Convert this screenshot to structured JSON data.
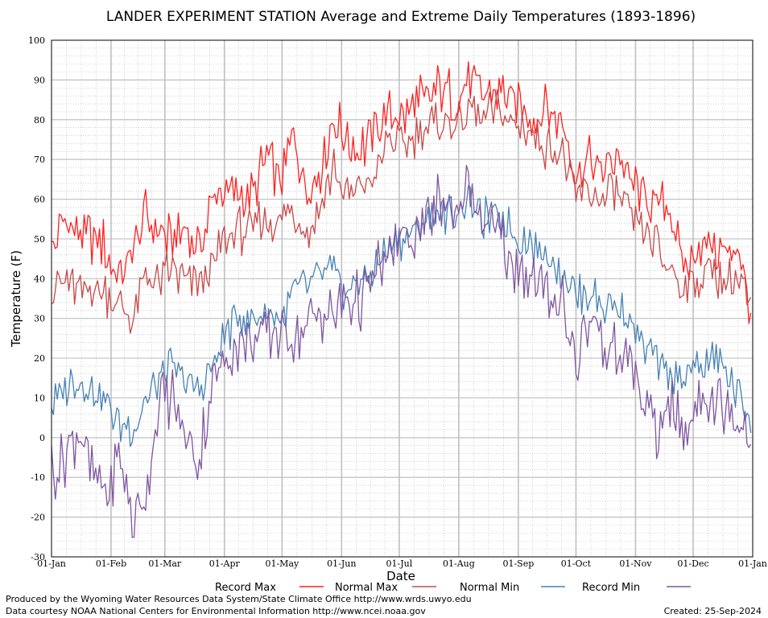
{
  "chart_data": {
    "type": "line",
    "title": "LANDER EXPERIMENT STATION Average and Extreme Daily Temperatures (1893-1896)",
    "xlabel": "Date",
    "ylabel": "Temperature (F)",
    "ylim": [
      -30,
      100
    ],
    "y_ticks": [
      "100",
      "90",
      "80",
      "70",
      "60",
      "50",
      "40",
      "30",
      "20",
      "10",
      "0",
      "-10",
      "-20",
      "-30"
    ],
    "x_ticks": [
      "01-Jan",
      "01-Feb",
      "01-Mar",
      "01-Apr",
      "01-May",
      "01-Jun",
      "01-Jul",
      "01-Aug",
      "01-Sep",
      "01-Oct",
      "01-Nov",
      "01-Dec",
      "01-Jan"
    ],
    "grid": true,
    "legend_position": "bottom",
    "colors": {
      "record_max": "#ff2020",
      "normal_max": "#c84848",
      "normal_min": "#4682b4",
      "record_min": "#7f56a0"
    },
    "series": [
      {
        "name": "Record Max",
        "key": "record_max",
        "days": [
          1,
          8,
          15,
          22,
          29,
          36,
          43,
          50,
          57,
          64,
          71,
          78,
          85,
          92,
          99,
          106,
          113,
          120,
          127,
          134,
          141,
          148,
          155,
          162,
          169,
          176,
          183,
          190,
          197,
          204,
          211,
          218,
          225,
          232,
          239,
          246,
          253,
          260,
          267,
          274,
          281,
          288,
          295,
          302,
          309,
          316,
          323,
          330,
          337,
          344,
          351,
          358,
          365
        ],
        "values": [
          46,
          55,
          52,
          50,
          48,
          40,
          47,
          56,
          52,
          49,
          52,
          48,
          60,
          62,
          60,
          62,
          70,
          65,
          75,
          63,
          68,
          80,
          75,
          72,
          78,
          82,
          80,
          84,
          85,
          88,
          85,
          92,
          86,
          88,
          86,
          83,
          80,
          83,
          78,
          66,
          70,
          66,
          72,
          65,
          60,
          58,
          58,
          42,
          48,
          50,
          45,
          50,
          32
        ]
      },
      {
        "name": "Normal Max",
        "key": "normal_max",
        "days": [
          1,
          8,
          15,
          22,
          29,
          36,
          43,
          50,
          57,
          64,
          71,
          78,
          85,
          92,
          99,
          106,
          113,
          120,
          127,
          134,
          141,
          148,
          155,
          162,
          169,
          176,
          183,
          190,
          197,
          204,
          211,
          218,
          225,
          232,
          239,
          246,
          253,
          260,
          267,
          274,
          281,
          288,
          295,
          302,
          309,
          316,
          323,
          330,
          337,
          344,
          351,
          358,
          365
        ],
        "values": [
          36,
          40,
          37,
          38,
          36,
          33,
          30,
          40,
          40,
          42,
          38,
          40,
          43,
          50,
          52,
          53,
          55,
          53,
          58,
          52,
          58,
          68,
          60,
          63,
          65,
          75,
          73,
          76,
          78,
          80,
          78,
          83,
          80,
          82,
          80,
          78,
          75,
          73,
          72,
          60,
          62,
          60,
          62,
          55,
          52,
          48,
          43,
          38,
          40,
          42,
          38,
          40,
          32
        ]
      },
      {
        "name": "Normal Min",
        "key": "normal_min",
        "days": [
          1,
          8,
          15,
          22,
          29,
          36,
          43,
          50,
          57,
          64,
          71,
          78,
          85,
          92,
          99,
          106,
          113,
          120,
          127,
          134,
          141,
          148,
          155,
          162,
          169,
          176,
          183,
          190,
          197,
          204,
          211,
          218,
          225,
          232,
          239,
          246,
          253,
          260,
          267,
          274,
          281,
          288,
          295,
          302,
          309,
          316,
          323,
          330,
          337,
          344,
          351,
          358,
          365
        ],
        "values": [
          8,
          13,
          14,
          12,
          10,
          4,
          2,
          10,
          14,
          18,
          14,
          12,
          18,
          26,
          30,
          30,
          32,
          30,
          36,
          38,
          40,
          42,
          36,
          40,
          42,
          48,
          50,
          52,
          55,
          57,
          56,
          60,
          55,
          56,
          53,
          50,
          48,
          46,
          42,
          36,
          36,
          33,
          32,
          30,
          24,
          20,
          14,
          16,
          18,
          20,
          18,
          10,
          6
        ]
      },
      {
        "name": "Record Min",
        "key": "record_min",
        "days": [
          1,
          8,
          15,
          22,
          29,
          36,
          43,
          50,
          57,
          64,
          71,
          78,
          85,
          92,
          99,
          106,
          113,
          120,
          127,
          134,
          141,
          148,
          155,
          162,
          169,
          176,
          183,
          190,
          197,
          204,
          211,
          218,
          225,
          232,
          239,
          246,
          253,
          260,
          267,
          274,
          281,
          288,
          295,
          302,
          309,
          316,
          323,
          330,
          337,
          344,
          351,
          358,
          365
        ],
        "values": [
          -8,
          -5,
          2,
          -10,
          -15,
          -5,
          -20,
          -15,
          8,
          10,
          0,
          -5,
          14,
          20,
          23,
          25,
          26,
          27,
          25,
          30,
          30,
          32,
          35,
          33,
          40,
          46,
          50,
          52,
          55,
          60,
          58,
          64,
          55,
          52,
          45,
          43,
          40,
          35,
          35,
          18,
          30,
          25,
          20,
          20,
          10,
          -2,
          10,
          0,
          10,
          10,
          8,
          5,
          2
        ]
      }
    ]
  },
  "footer": {
    "credit_line1": "Produced by the Wyoming Water Resources Data System/State Climate Office http://www.wrds.uwyo.edu",
    "credit_line2": "Data courtesy NOAA National Centers for Environmental Information http://www.ncei.noaa.gov",
    "created": "Created:  25-Sep-2024"
  }
}
